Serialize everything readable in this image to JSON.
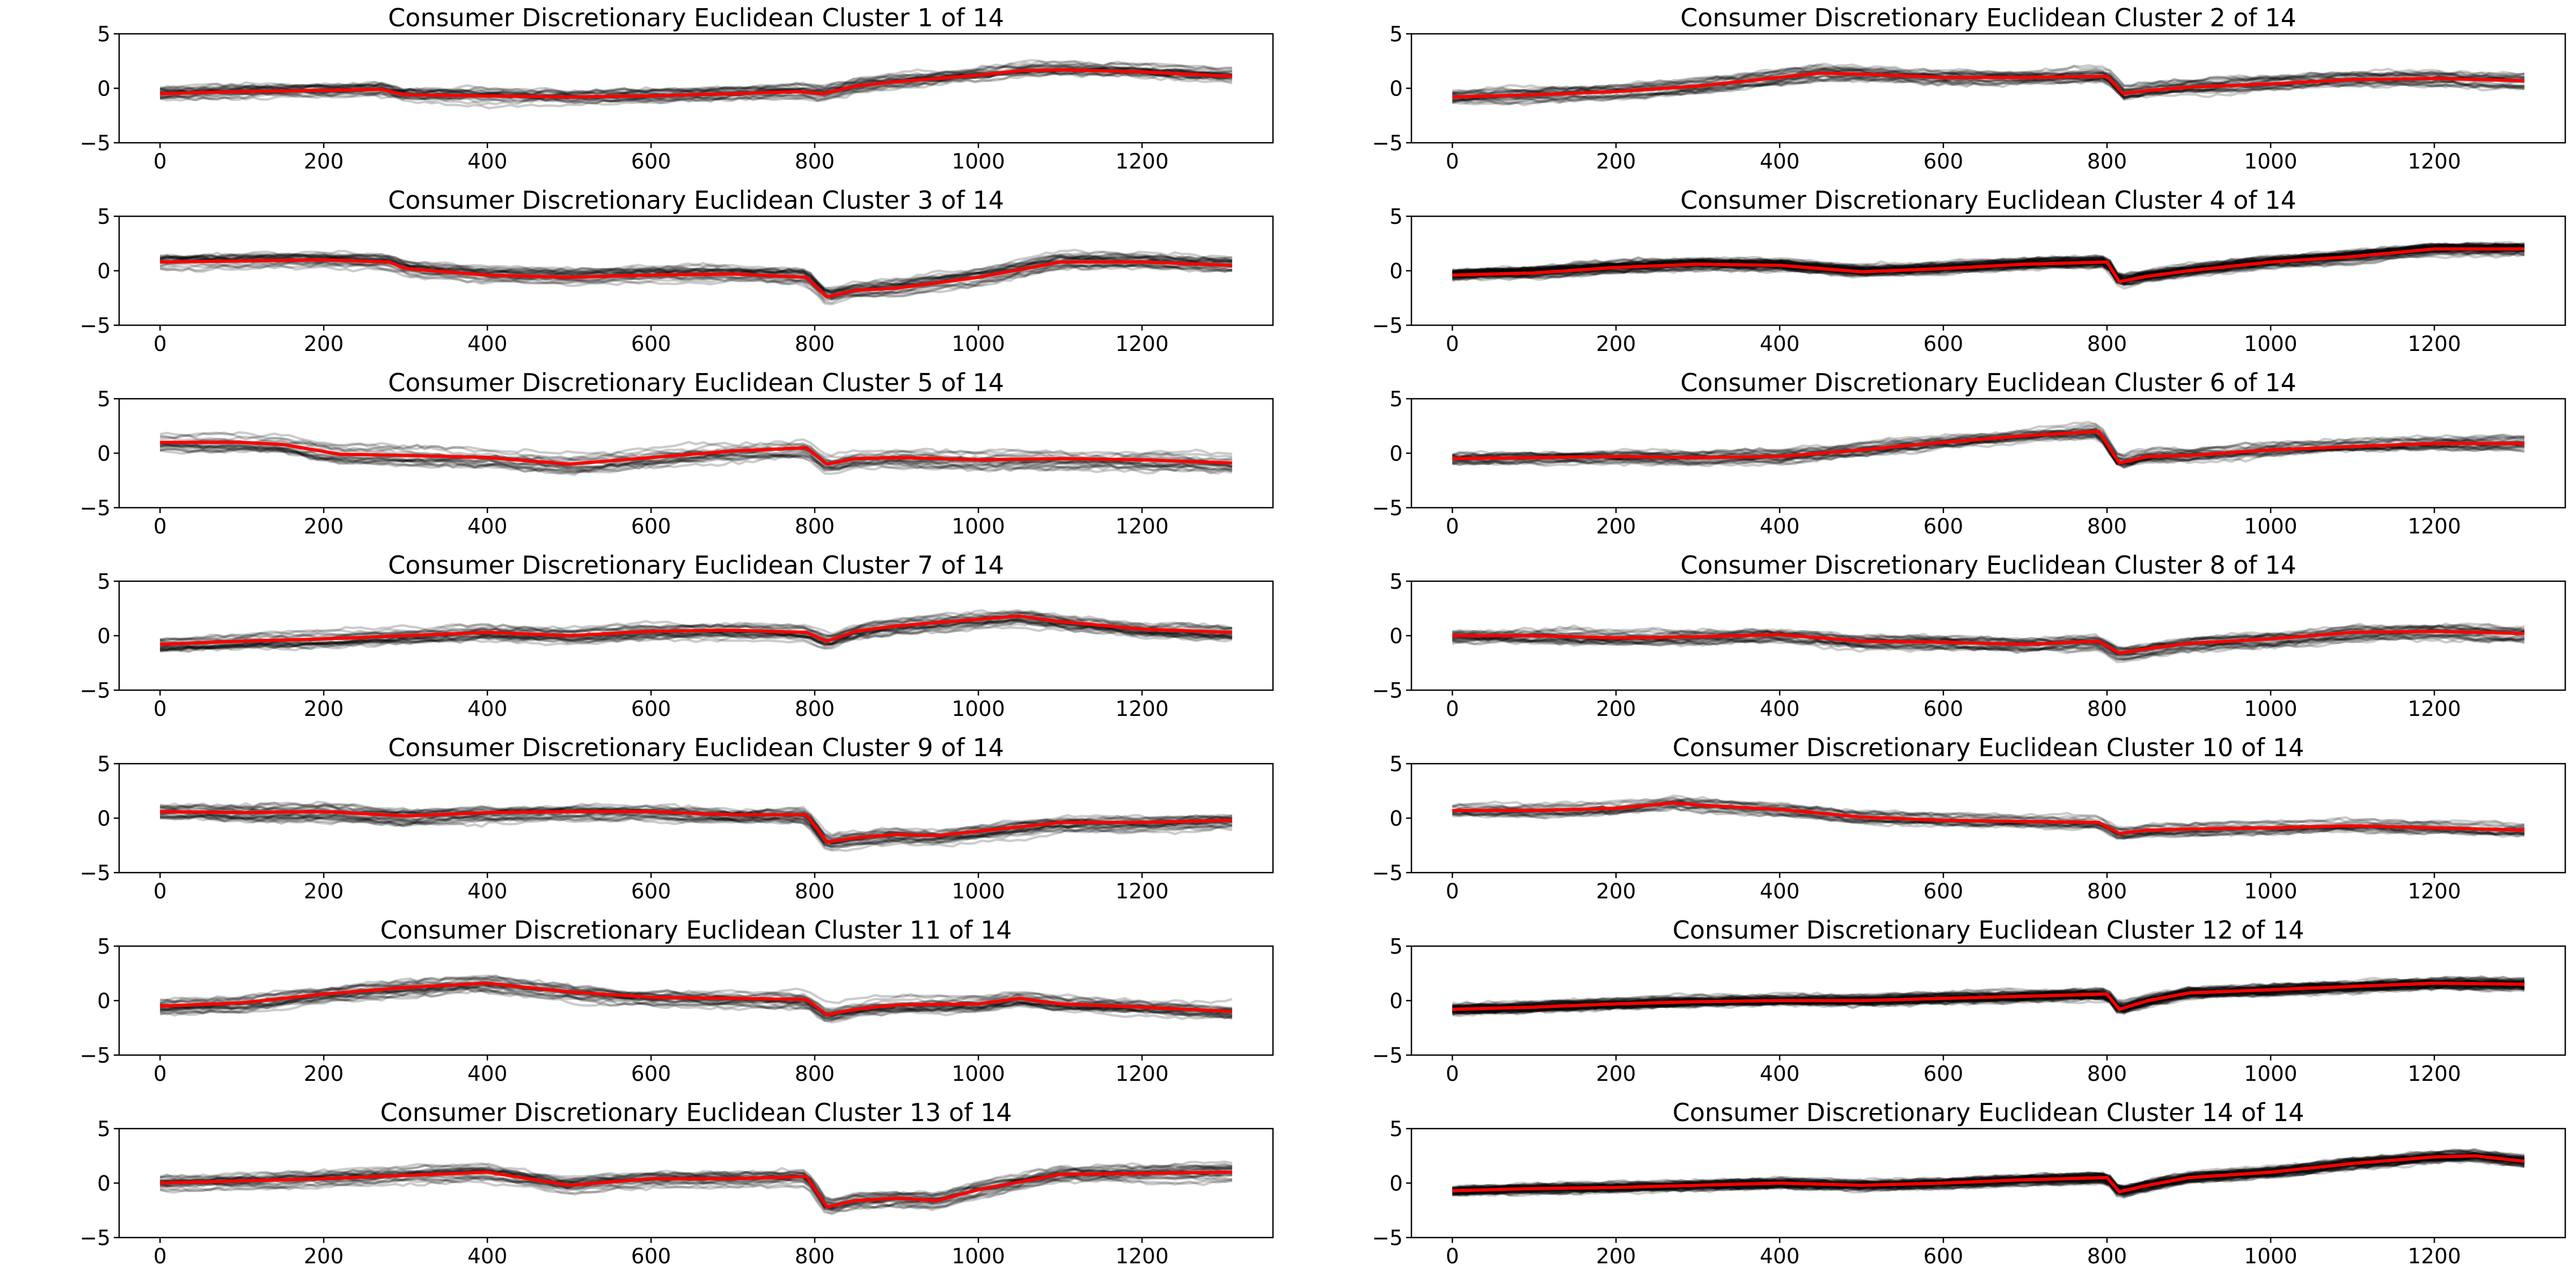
{
  "chart_data": [
    {
      "type": "line",
      "title": "Consumer Discretionary Euclidean Cluster 1 of 14",
      "xlim": [
        -50,
        1360
      ],
      "ylim": [
        -5,
        5
      ],
      "xticks": [
        0,
        200,
        400,
        600,
        800,
        1000,
        1200
      ],
      "yticks": [
        -5,
        0,
        5
      ],
      "xlabel": "",
      "ylabel": "",
      "series": [
        {
          "role": "cluster-member-series",
          "color": "#000000",
          "opacity": 0.2,
          "count": 25,
          "x_range": [
            0,
            1310
          ],
          "spread": 0.7
        },
        {
          "role": "cluster-centroid",
          "color": "#ff0000",
          "x": [
            0,
            100,
            200,
            270,
            300,
            400,
            500,
            600,
            700,
            780,
            810,
            850,
            900,
            1000,
            1050,
            1100,
            1200,
            1310
          ],
          "y": [
            -0.5,
            -0.3,
            -0.2,
            -0.1,
            -0.6,
            -0.7,
            -0.8,
            -0.7,
            -0.5,
            -0.3,
            -0.5,
            0.2,
            0.6,
            1.2,
            1.6,
            1.7,
            1.5,
            1.1
          ]
        }
      ]
    },
    {
      "type": "line",
      "title": "Consumer Discretionary Euclidean Cluster 2 of 14",
      "xlim": [
        -50,
        1360
      ],
      "ylim": [
        -5,
        5
      ],
      "xticks": [
        0,
        200,
        400,
        600,
        800,
        1000,
        1200
      ],
      "yticks": [
        -5,
        0,
        5
      ],
      "xlabel": "",
      "ylabel": "",
      "series": [
        {
          "role": "cluster-member-series",
          "color": "#000000",
          "opacity": 0.2,
          "count": 25,
          "x_range": [
            0,
            1310
          ],
          "spread": 0.7
        },
        {
          "role": "cluster-centroid",
          "color": "#ff0000",
          "x": [
            0,
            100,
            200,
            300,
            400,
            450,
            500,
            600,
            700,
            800,
            820,
            850,
            900,
            1000,
            1100,
            1200,
            1310
          ],
          "y": [
            -0.8,
            -0.6,
            -0.3,
            0.2,
            1.0,
            1.4,
            1.3,
            1.0,
            1.0,
            1.1,
            -0.5,
            -0.2,
            0.1,
            0.4,
            0.8,
            0.9,
            0.7
          ]
        }
      ]
    },
    {
      "type": "line",
      "title": "Consumer Discretionary Euclidean Cluster 3 of 14",
      "xlim": [
        -50,
        1360
      ],
      "ylim": [
        -5,
        5
      ],
      "xticks": [
        0,
        200,
        400,
        600,
        800,
        1000,
        1200
      ],
      "yticks": [
        -5,
        0,
        5
      ],
      "xlabel": "",
      "ylabel": "",
      "series": [
        {
          "role": "cluster-member-series",
          "color": "#000000",
          "opacity": 0.2,
          "count": 25,
          "x_range": [
            0,
            1310
          ],
          "spread": 0.7
        },
        {
          "role": "cluster-centroid",
          "color": "#ff0000",
          "x": [
            0,
            100,
            200,
            280,
            300,
            400,
            500,
            600,
            700,
            790,
            815,
            850,
            900,
            1000,
            1100,
            1200,
            1310
          ],
          "y": [
            0.8,
            0.9,
            1.0,
            0.8,
            0.2,
            -0.4,
            -0.6,
            -0.4,
            -0.3,
            -0.6,
            -2.4,
            -1.8,
            -1.6,
            -0.6,
            0.8,
            0.8,
            0.5
          ]
        }
      ]
    },
    {
      "type": "line",
      "title": "Consumer Discretionary Euclidean Cluster 4 of 14",
      "xlim": [
        -50,
        1360
      ],
      "ylim": [
        -5,
        5
      ],
      "xticks": [
        0,
        200,
        400,
        600,
        800,
        1000,
        1200
      ],
      "yticks": [
        -5,
        0,
        5
      ],
      "xlabel": "",
      "ylabel": "",
      "series": [
        {
          "role": "cluster-member-series",
          "color": "#000000",
          "opacity": 0.2,
          "count": 60,
          "x_range": [
            0,
            1310
          ],
          "spread": 0.5
        },
        {
          "role": "cluster-centroid",
          "color": "#ff0000",
          "x": [
            0,
            100,
            200,
            300,
            400,
            500,
            600,
            700,
            800,
            815,
            850,
            900,
            1000,
            1100,
            1200,
            1310
          ],
          "y": [
            -0.4,
            -0.2,
            0.3,
            0.6,
            0.5,
            -0.1,
            0.2,
            0.6,
            0.8,
            -1.0,
            -0.5,
            0.0,
            0.8,
            1.3,
            2.0,
            2.0
          ]
        }
      ]
    },
    {
      "type": "line",
      "title": "Consumer Discretionary Euclidean Cluster 5 of 14",
      "xlim": [
        -50,
        1360
      ],
      "ylim": [
        -5,
        5
      ],
      "xticks": [
        0,
        200,
        400,
        600,
        800,
        1000,
        1200
      ],
      "yticks": [
        -5,
        0,
        5
      ],
      "xlabel": "",
      "ylabel": "",
      "series": [
        {
          "role": "cluster-member-series",
          "color": "#000000",
          "opacity": 0.2,
          "count": 20,
          "x_range": [
            0,
            1310
          ],
          "spread": 0.9
        },
        {
          "role": "cluster-centroid",
          "color": "#ff0000",
          "x": [
            0,
            100,
            150,
            220,
            300,
            400,
            500,
            600,
            700,
            790,
            815,
            850,
            900,
            1000,
            1100,
            1200,
            1310
          ],
          "y": [
            1.0,
            1.0,
            0.8,
            -0.1,
            -0.2,
            -0.4,
            -1.0,
            -0.4,
            0.2,
            0.5,
            -1.0,
            -0.5,
            -0.4,
            -0.6,
            -0.5,
            -0.6,
            -0.9
          ]
        }
      ]
    },
    {
      "type": "line",
      "title": "Consumer Discretionary Euclidean Cluster 6 of 14",
      "xlim": [
        -50,
        1360
      ],
      "ylim": [
        -5,
        5
      ],
      "xticks": [
        0,
        200,
        400,
        600,
        800,
        1000,
        1200
      ],
      "yticks": [
        -5,
        0,
        5
      ],
      "xlabel": "",
      "ylabel": "",
      "series": [
        {
          "role": "cluster-member-series",
          "color": "#000000",
          "opacity": 0.2,
          "count": 25,
          "x_range": [
            0,
            1310
          ],
          "spread": 0.7
        },
        {
          "role": "cluster-centroid",
          "color": "#ff0000",
          "x": [
            0,
            100,
            200,
            300,
            400,
            500,
            600,
            700,
            790,
            815,
            850,
            900,
            1000,
            1100,
            1200,
            1310
          ],
          "y": [
            -0.5,
            -0.4,
            -0.3,
            -0.4,
            -0.3,
            0.3,
            1.0,
            1.6,
            2.0,
            -0.9,
            -0.3,
            -0.2,
            0.3,
            0.6,
            0.9,
            0.9
          ]
        }
      ]
    },
    {
      "type": "line",
      "title": "Consumer Discretionary Euclidean Cluster 7 of 14",
      "xlim": [
        -50,
        1360
      ],
      "ylim": [
        -5,
        5
      ],
      "xticks": [
        0,
        200,
        400,
        600,
        800,
        1000,
        1200
      ],
      "yticks": [
        -5,
        0,
        5
      ],
      "xlabel": "",
      "ylabel": "",
      "series": [
        {
          "role": "cluster-member-series",
          "color": "#000000",
          "opacity": 0.2,
          "count": 25,
          "x_range": [
            0,
            1310
          ],
          "spread": 0.7
        },
        {
          "role": "cluster-centroid",
          "color": "#ff0000",
          "x": [
            0,
            100,
            200,
            300,
            400,
            500,
            600,
            700,
            790,
            815,
            850,
            900,
            1000,
            1050,
            1100,
            1200,
            1310
          ],
          "y": [
            -0.8,
            -0.5,
            -0.3,
            0.0,
            0.3,
            0.0,
            0.4,
            0.5,
            0.3,
            -0.5,
            0.4,
            0.9,
            1.5,
            1.8,
            1.3,
            0.6,
            0.3
          ]
        }
      ]
    },
    {
      "type": "line",
      "title": "Consumer Discretionary Euclidean Cluster 8 of 14",
      "xlim": [
        -50,
        1360
      ],
      "ylim": [
        -5,
        5
      ],
      "xticks": [
        0,
        200,
        400,
        600,
        800,
        1000,
        1200
      ],
      "yticks": [
        -5,
        0,
        5
      ],
      "xlabel": "",
      "ylabel": "",
      "series": [
        {
          "role": "cluster-member-series",
          "color": "#000000",
          "opacity": 0.2,
          "count": 25,
          "x_range": [
            0,
            1310
          ],
          "spread": 0.8
        },
        {
          "role": "cluster-centroid",
          "color": "#ff0000",
          "x": [
            0,
            100,
            200,
            300,
            400,
            500,
            600,
            700,
            790,
            815,
            850,
            900,
            1000,
            1100,
            1200,
            1310
          ],
          "y": [
            0.0,
            0.0,
            -0.2,
            -0.1,
            0.1,
            -0.5,
            -0.6,
            -0.8,
            -0.5,
            -1.6,
            -1.2,
            -0.7,
            -0.3,
            0.3,
            0.4,
            0.2
          ]
        }
      ]
    },
    {
      "type": "line",
      "title": "Consumer Discretionary Euclidean Cluster 9 of 14",
      "xlim": [
        -50,
        1360
      ],
      "ylim": [
        -5,
        5
      ],
      "xticks": [
        0,
        200,
        400,
        600,
        800,
        1000,
        1200
      ],
      "yticks": [
        -5,
        0,
        5
      ],
      "xlabel": "",
      "ylabel": "",
      "series": [
        {
          "role": "cluster-member-series",
          "color": "#000000",
          "opacity": 0.2,
          "count": 25,
          "x_range": [
            0,
            1310
          ],
          "spread": 0.8
        },
        {
          "role": "cluster-centroid",
          "color": "#ff0000",
          "x": [
            0,
            100,
            200,
            300,
            400,
            500,
            600,
            700,
            790,
            815,
            850,
            900,
            950,
            1000,
            1100,
            1200,
            1310
          ],
          "y": [
            0.6,
            0.5,
            0.6,
            0.2,
            0.5,
            0.6,
            0.6,
            0.3,
            0.3,
            -2.2,
            -1.8,
            -1.5,
            -1.6,
            -1.2,
            -0.4,
            -0.4,
            -0.2
          ]
        }
      ]
    },
    {
      "type": "line",
      "title": "Consumer Discretionary Euclidean Cluster 10 of 14",
      "xlim": [
        -50,
        1360
      ],
      "ylim": [
        -5,
        5
      ],
      "xticks": [
        0,
        200,
        400,
        600,
        800,
        1000,
        1200
      ],
      "yticks": [
        -5,
        0,
        5
      ],
      "xlabel": "",
      "ylabel": "",
      "series": [
        {
          "role": "cluster-member-series",
          "color": "#000000",
          "opacity": 0.2,
          "count": 20,
          "x_range": [
            0,
            1310
          ],
          "spread": 0.6
        },
        {
          "role": "cluster-centroid",
          "color": "#ff0000",
          "x": [
            0,
            100,
            200,
            270,
            300,
            400,
            500,
            600,
            700,
            790,
            815,
            850,
            900,
            1000,
            1100,
            1200,
            1310
          ],
          "y": [
            0.7,
            0.7,
            0.9,
            1.4,
            1.2,
            0.8,
            0.1,
            -0.2,
            -0.3,
            -0.4,
            -1.4,
            -1.1,
            -1.0,
            -0.9,
            -0.7,
            -0.9,
            -1.1
          ]
        }
      ]
    },
    {
      "type": "line",
      "title": "Consumer Discretionary Euclidean Cluster 11 of 14",
      "xlim": [
        -50,
        1360
      ],
      "ylim": [
        -5,
        5
      ],
      "xticks": [
        0,
        200,
        400,
        600,
        800,
        1000,
        1200
      ],
      "yticks": [
        -5,
        0,
        5
      ],
      "xlabel": "",
      "ylabel": "",
      "series": [
        {
          "role": "cluster-member-series",
          "color": "#000000",
          "opacity": 0.2,
          "count": 25,
          "x_range": [
            0,
            1310
          ],
          "spread": 0.8
        },
        {
          "role": "cluster-centroid",
          "color": "#ff0000",
          "x": [
            0,
            100,
            200,
            300,
            400,
            500,
            600,
            700,
            790,
            815,
            850,
            900,
            1000,
            1050,
            1100,
            1200,
            1310
          ],
          "y": [
            -0.5,
            -0.2,
            0.6,
            1.2,
            1.6,
            0.8,
            0.3,
            0.2,
            0.1,
            -1.3,
            -0.8,
            -0.4,
            -0.3,
            0.2,
            -0.3,
            -0.6,
            -1.0
          ]
        }
      ]
    },
    {
      "type": "line",
      "title": "Consumer Discretionary Euclidean Cluster 12 of 14",
      "xlim": [
        -50,
        1360
      ],
      "ylim": [
        -5,
        5
      ],
      "xticks": [
        0,
        200,
        400,
        600,
        800,
        1000,
        1200
      ],
      "yticks": [
        -5,
        0,
        5
      ],
      "xlabel": "",
      "ylabel": "",
      "series": [
        {
          "role": "cluster-member-series",
          "color": "#000000",
          "opacity": 0.2,
          "count": 60,
          "x_range": [
            0,
            1310
          ],
          "spread": 0.5
        },
        {
          "role": "cluster-centroid",
          "color": "#ff0000",
          "x": [
            0,
            100,
            200,
            300,
            400,
            500,
            600,
            700,
            800,
            815,
            850,
            900,
            1000,
            1100,
            1200,
            1310
          ],
          "y": [
            -0.8,
            -0.6,
            -0.3,
            -0.1,
            0.0,
            0.0,
            0.2,
            0.4,
            0.6,
            -0.8,
            0.0,
            0.7,
            1.0,
            1.3,
            1.6,
            1.5
          ]
        }
      ]
    },
    {
      "type": "line",
      "title": "Consumer Discretionary Euclidean Cluster 13 of 14",
      "xlim": [
        -50,
        1360
      ],
      "ylim": [
        -5,
        5
      ],
      "xticks": [
        0,
        200,
        400,
        600,
        800,
        1000,
        1200
      ],
      "yticks": [
        -5,
        0,
        5
      ],
      "xlabel": "",
      "ylabel": "",
      "series": [
        {
          "role": "cluster-member-series",
          "color": "#000000",
          "opacity": 0.2,
          "count": 25,
          "x_range": [
            0,
            1310
          ],
          "spread": 0.7
        },
        {
          "role": "cluster-centroid",
          "color": "#ff0000",
          "x": [
            0,
            100,
            200,
            300,
            400,
            500,
            600,
            700,
            790,
            815,
            850,
            900,
            950,
            1000,
            1100,
            1200,
            1310
          ],
          "y": [
            0.0,
            0.2,
            0.4,
            0.7,
            1.0,
            -0.2,
            0.4,
            0.4,
            0.6,
            -2.2,
            -1.6,
            -1.4,
            -1.6,
            -0.6,
            0.8,
            0.9,
            1.0
          ]
        }
      ]
    },
    {
      "type": "line",
      "title": "Consumer Discretionary Euclidean Cluster 14 of 14",
      "xlim": [
        -50,
        1360
      ],
      "ylim": [
        -5,
        5
      ],
      "xticks": [
        0,
        200,
        400,
        600,
        800,
        1000,
        1200
      ],
      "yticks": [
        -5,
        0,
        5
      ],
      "xlabel": "",
      "ylabel": "",
      "series": [
        {
          "role": "cluster-member-series",
          "color": "#000000",
          "opacity": 0.2,
          "count": 60,
          "x_range": [
            0,
            1310
          ],
          "spread": 0.45
        },
        {
          "role": "cluster-centroid",
          "color": "#ff0000",
          "x": [
            0,
            100,
            200,
            300,
            400,
            500,
            600,
            700,
            800,
            815,
            850,
            900,
            1000,
            1100,
            1200,
            1250,
            1310
          ],
          "y": [
            -0.7,
            -0.5,
            -0.4,
            -0.2,
            0.0,
            -0.2,
            0.0,
            0.3,
            0.5,
            -0.8,
            -0.2,
            0.5,
            1.0,
            1.8,
            2.4,
            2.5,
            2.0
          ]
        }
      ]
    }
  ]
}
